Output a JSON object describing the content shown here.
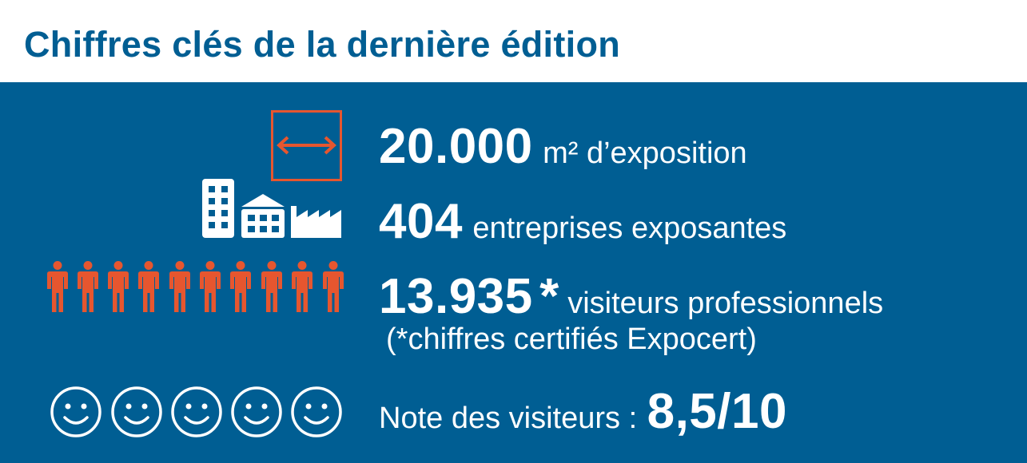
{
  "header": {
    "title": "Chiffres clés de la dernière édition"
  },
  "colors": {
    "primary": "#005e93",
    "accent": "#e6562f",
    "text_on_primary": "#ffffff"
  },
  "stats": {
    "area": {
      "value": "20.000",
      "label": "m² d’exposition",
      "icon": "area-arrow-icon"
    },
    "exhibitors": {
      "value": "404",
      "label": "entreprises exposantes",
      "icons": [
        "office-building-icon",
        "warehouse-icon",
        "factory-icon"
      ]
    },
    "visitors": {
      "value": "13.935",
      "asterisk": "*",
      "label": "visiteurs professionnels",
      "note": "(*chiffres certifiés Expocert)",
      "icon": "person-icon"
    },
    "rating": {
      "label": "Note des visiteurs :",
      "value": "8,5/10",
      "icon": "smiley-icon"
    }
  }
}
